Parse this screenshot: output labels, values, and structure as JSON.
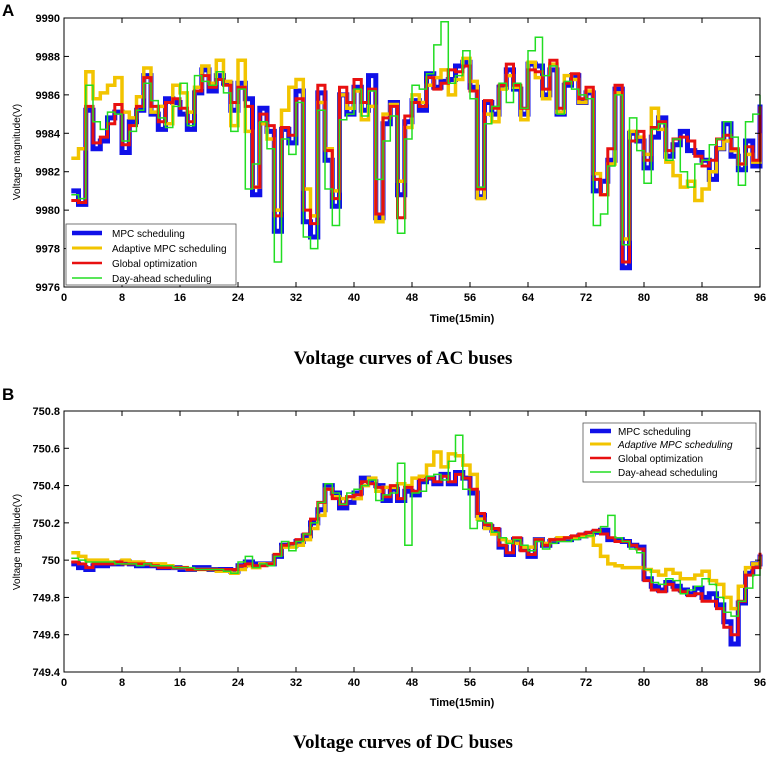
{
  "chart_data": [
    {
      "panel": "A",
      "type": "line",
      "step": true,
      "caption": "Voltage curves of AC buses",
      "xlabel": "Time(15min)",
      "ylabel": "Voltage magnitude(V)",
      "xlim": [
        0,
        96
      ],
      "ylim": [
        9976,
        9990
      ],
      "xticks": [
        0,
        8,
        16,
        24,
        32,
        40,
        48,
        56,
        64,
        72,
        80,
        88,
        96
      ],
      "yticks": [
        9976,
        9978,
        9980,
        9982,
        9984,
        9986,
        9988,
        9990
      ],
      "legend_position": "bottom-left",
      "series": [
        {
          "name": "MPC scheduling",
          "color": "#1010e8",
          "values": [
            9981,
            9980.3,
            9985.2,
            9983.2,
            9983.6,
            9984.8,
            9985.1,
            9983,
            9984.6,
            9985.2,
            9987,
            9985,
            9984.2,
            9985.8,
            9985.6,
            9985,
            9984.2,
            9986.1,
            9987.3,
            9986.2,
            9987,
            9986.6,
            9985.2,
            9986.6,
            9985.8,
            9980.8,
            9985.3,
            9984.1,
            9978.9,
            9984.2,
            9983.5,
            9986.2,
            9979.4,
            9978.6,
            9986.1,
            9982.6,
            9980.2,
            9986,
            9985,
            9986.4,
            9985.2,
            9987,
            9979.6,
            9984.5,
            9985.6,
            9980.8,
            9984.6,
            9985.7,
            9985.2,
            9987.1,
            9986.4,
            9986.7,
            9986.8,
            9987.5,
            9987.7,
            9986.4,
            9980.7,
            9985.6,
            9985,
            9986.4,
            9987.3,
            9986.3,
            9985,
            9987.6,
            9987.5,
            9986,
            9987.3,
            9985,
            9986.5,
            9987,
            9985.6,
            9986.1,
            9981,
            9981.5,
            9982.6,
            9986.3,
            9977,
            9984,
            9983.6,
            9982.2,
            9983.8,
            9984.8,
            9982.8,
            9983.4,
            9984.1,
            9983.1,
            9983,
            9982.6,
            9981.6,
            9983.2,
            9984.5,
            9982.8,
            9982.1,
            9983.6,
            9982.3,
            9985.5
          ]
        },
        {
          "name": "Adaptive MPC scheduling",
          "color": "#f2c400",
          "values": [
            9982.7,
            9983.2,
            9987.2,
            9985.8,
            9986.1,
            9986.5,
            9986.9,
            9985.1,
            9984.8,
            9985.9,
            9987.4,
            9985.1,
            9985.4,
            9984.5,
            9986.5,
            9986.1,
            9985.1,
            9986.4,
            9987.5,
            9986.6,
            9987.8,
            9986.7,
            9984.4,
            9987.8,
            9984.1,
            9981.2,
            9984.5,
            9983.7,
            9980,
            9985.2,
            9986.4,
            9986.8,
            9981.1,
            9979.7,
            9985.6,
            9983.2,
            9981,
            9986,
            9985.3,
            9986.2,
            9984.7,
            9985.4,
            9979.4,
            9985,
            9985.5,
            9981.5,
            9984.3,
            9986,
            9985.6,
            9986.5,
            9986.9,
            9987.3,
            9986,
            9986.8,
            9987.9,
            9986.7,
            9980.6,
            9985,
            9984.6,
            9986.3,
            9987,
            9986.4,
            9984.7,
            9987.7,
            9986.9,
            9985.8,
            9987.6,
            9985.1,
            9987,
            9986.8,
            9985.6,
            9986.2,
            9981.9,
            9980.8,
            9982.4,
            9986.1,
            9978.5,
            9984.1,
            9983.8,
            9982.9,
            9985.3,
            9984.2,
            9982.5,
            9981.8,
            9981.2,
            9981.5,
            9980.5,
            9981.1,
            9982,
            9983.2,
            9983.6,
            9983.1,
            9982.4,
            9982.9,
            9982.5,
            9984
          ]
        },
        {
          "name": "Global optimization",
          "color": "#e81010",
          "values": [
            9980.5,
            9980.4,
            9985.4,
            9983.5,
            9983.8,
            9984.5,
            9985.5,
            9983.4,
            9984.4,
            9985.4,
            9986.9,
            9985.4,
            9984.6,
            9985.6,
            9985.8,
            9985.3,
            9984.6,
            9986.2,
            9987,
            9986.4,
            9986.8,
            9986.5,
            9985.6,
            9986.4,
            9985.4,
            9981.2,
            9985,
            9984.4,
            9979.7,
            9984.3,
            9983.9,
            9985.8,
            9980,
            9979.3,
            9986.5,
            9983.1,
            9980.6,
            9986.4,
            9985.6,
            9986.8,
            9985.6,
            9986.3,
            9979.8,
            9984.8,
            9985.4,
            9979.6,
            9984.9,
            9985.6,
            9985.4,
            9986.9,
            9986.3,
            9986.6,
            9987.3,
            9987.2,
            9987.5,
            9986.2,
            9981.1,
            9985.7,
            9985.3,
            9986.5,
            9987.6,
            9986.5,
            9985.3,
            9987.3,
            9987.2,
            9986.3,
            9987.8,
            9985.3,
            9986.6,
            9987.1,
            9985.8,
            9986.4,
            9981.6,
            9980.8,
            9983.2,
            9986.5,
            9977.3,
            9983.6,
            9984.1,
            9982.6,
            9984.3,
            9984.6,
            9983.1,
            9983.7,
            9983.8,
            9983.6,
            9982.8,
            9982.3,
            9982.6,
            9983.7,
            9983.9,
            9983.2,
            9982.4,
            9983.3,
            9982.6,
            9985.4
          ]
        },
        {
          "name": "Day-ahead scheduling",
          "color": "#22dd22",
          "values": [
            9980.8,
            9980.6,
            9986.5,
            9984.6,
            9984.2,
            9985.1,
            9985,
            9983.6,
            9984.1,
            9985.2,
            9986.6,
            9985.7,
            9984.8,
            9984.3,
            9985.4,
            9986.6,
            9984.4,
            9987,
            9986.7,
            9986.5,
            9987.2,
            9986.1,
            9984.1,
            9986.3,
            9981.1,
            9982.4,
            9984.6,
            9983.2,
            9977.3,
            9983.7,
            9982.9,
            9985.6,
            9978.6,
            9978,
            9985.2,
            9981.1,
            9979.2,
            9984.7,
            9985,
            9986.3,
            9984.9,
            9986.2,
            9981.6,
            9983.6,
            9984.9,
            9978.8,
            9983.7,
            9986.5,
            9986.3,
            9987.1,
            9988.6,
            9989.8,
            9986.6,
            9987,
            9988.3,
            9985.8,
            9981.2,
            9984.5,
            9985.4,
            9986.6,
            9985.6,
            9986.6,
            9985.3,
            9988.3,
            9989,
            9987,
            9987.5,
            9985,
            9986.7,
            9986.3,
            9986,
            9985.8,
            9979.2,
            9979.8,
            9982.3,
            9986,
            9978.2,
            9984.8,
            9983.1,
            9981.4,
            9984.2,
            9984.5,
            9982.6,
            9983.7,
            9982,
            9981.2,
            9982.4,
            9982.6,
            9983.4,
            9983.7,
            9984.6,
            9983.8,
            9981.3,
            9984.6,
            9985,
            9986
          ]
        }
      ]
    },
    {
      "panel": "B",
      "type": "line",
      "step": true,
      "caption": "Voltage curves of DC buses",
      "xlabel": "Time(15min)",
      "ylabel": "Voltage magnitude(V)",
      "xlim": [
        0,
        96
      ],
      "ylim": [
        749.4,
        750.8
      ],
      "xticks": [
        0,
        8,
        16,
        24,
        32,
        40,
        48,
        56,
        64,
        72,
        80,
        88,
        96
      ],
      "yticks": [
        "749.4",
        "749.6",
        "749.8",
        "750",
        "750.2",
        "750.4",
        "750.6",
        "750.8"
      ],
      "legend_position": "top-right",
      "series": [
        {
          "name": "MPC scheduling",
          "color": "#1010e8",
          "values": [
            749.98,
            749.96,
            749.95,
            749.97,
            749.97,
            749.98,
            749.98,
            749.99,
            749.98,
            749.97,
            749.97,
            749.97,
            749.96,
            749.96,
            749.96,
            749.95,
            749.95,
            749.96,
            749.96,
            749.95,
            749.95,
            749.95,
            749.94,
            749.97,
            749.99,
            749.98,
            749.98,
            749.98,
            750.02,
            750.08,
            750.08,
            750.1,
            750.13,
            750.2,
            750.27,
            750.4,
            750.36,
            750.28,
            750.31,
            750.36,
            750.44,
            750.42,
            750.4,
            750.32,
            750.38,
            750.32,
            750.37,
            750.35,
            750.42,
            750.44,
            750.41,
            750.46,
            750.41,
            750.47,
            750.44,
            750.36,
            750.24,
            750.18,
            750.16,
            750.07,
            750.03,
            750.11,
            750.06,
            750.02,
            750.11,
            750.08,
            750.1,
            750.11,
            750.11,
            750.12,
            750.13,
            750.14,
            750.15,
            750.16,
            750.11,
            750.11,
            750.1,
            750.08,
            750.07,
            749.9,
            749.86,
            749.84,
            749.88,
            749.86,
            749.84,
            749.82,
            749.85,
            749.8,
            749.82,
            749.76,
            749.67,
            749.55,
            749.77,
            749.93,
            749.98,
            750.03
          ]
        },
        {
          "name": "Adaptive MPC scheduling",
          "color": "#f2c400",
          "values": [
            750.04,
            750.02,
            750,
            750,
            750,
            749.99,
            749.99,
            750,
            749.99,
            749.99,
            749.98,
            749.98,
            749.98,
            749.97,
            749.96,
            749.96,
            749.95,
            749.95,
            749.95,
            749.95,
            749.94,
            749.94,
            749.93,
            749.95,
            749.97,
            749.96,
            749.98,
            749.98,
            750.03,
            750.07,
            750.07,
            750.08,
            750.11,
            750.17,
            750.24,
            750.38,
            750.34,
            750.33,
            750.34,
            750.33,
            750.4,
            750.44,
            750.37,
            750.39,
            750.39,
            750.41,
            750.4,
            750.44,
            750.45,
            750.51,
            750.58,
            750.5,
            750.57,
            750.56,
            750.51,
            750.46,
            750.22,
            750.17,
            750.14,
            750.11,
            750.1,
            750.09,
            750.07,
            750.07,
            750.11,
            750.09,
            750.11,
            750.12,
            750.12,
            750.12,
            750.13,
            750.13,
            750.08,
            750.02,
            749.98,
            749.97,
            749.96,
            749.96,
            749.96,
            749.95,
            749.94,
            749.92,
            749.95,
            749.93,
            749.9,
            749.9,
            749.92,
            749.94,
            749.89,
            749.87,
            749.8,
            749.74,
            749.86,
            749.96,
            749.98,
            750.02
          ]
        },
        {
          "name": "Global optimization",
          "color": "#e81010",
          "values": [
            749.99,
            749.98,
            749.96,
            749.98,
            749.98,
            749.98,
            749.99,
            749.98,
            749.98,
            749.98,
            749.98,
            749.97,
            749.96,
            749.96,
            749.96,
            749.96,
            749.95,
            749.95,
            749.95,
            749.95,
            749.95,
            749.95,
            749.95,
            749.97,
            749.98,
            749.97,
            749.97,
            749.98,
            750.03,
            750.08,
            750.09,
            750.11,
            750.14,
            750.22,
            750.31,
            750.38,
            750.33,
            750.3,
            750.34,
            750.35,
            750.42,
            750.41,
            750.39,
            750.34,
            750.4,
            750.33,
            750.39,
            750.37,
            750.43,
            750.44,
            750.42,
            750.45,
            750.42,
            750.46,
            750.44,
            750.38,
            750.25,
            750.19,
            750.17,
            750.08,
            750.04,
            750.12,
            750.05,
            750.03,
            750.11,
            750.08,
            750.11,
            750.11,
            750.12,
            750.13,
            750.14,
            750.15,
            750.16,
            750.14,
            750.12,
            750.1,
            750.1,
            750.08,
            750.06,
            749.89,
            749.84,
            749.83,
            749.87,
            749.84,
            749.83,
            749.81,
            749.82,
            749.78,
            749.78,
            749.74,
            749.64,
            749.6,
            749.78,
            749.92,
            749.96,
            750.04
          ]
        },
        {
          "name": "Day-ahead scheduling",
          "color": "#22dd22",
          "values": [
            750.01,
            750,
            749.99,
            749.99,
            749.99,
            749.99,
            749.98,
            749.98,
            749.98,
            749.97,
            749.98,
            749.97,
            749.97,
            749.97,
            749.96,
            749.96,
            749.96,
            749.95,
            749.95,
            749.95,
            749.95,
            749.94,
            749.93,
            749.99,
            750.02,
            749.96,
            749.98,
            749.97,
            750.02,
            750.1,
            750.05,
            750.1,
            750.14,
            750.2,
            750.31,
            750.41,
            750.36,
            750.3,
            750.36,
            750.38,
            750.4,
            750.43,
            750.32,
            750.35,
            750.36,
            750.52,
            750.08,
            750.36,
            750.37,
            750.45,
            750.46,
            750.43,
            750.53,
            750.67,
            750.38,
            750.17,
            750.21,
            750.2,
            750.15,
            750.12,
            750.09,
            750.11,
            750.08,
            750.05,
            750.1,
            750.06,
            750.09,
            750.1,
            750.1,
            750.11,
            750.12,
            750.13,
            750.15,
            750.18,
            750.24,
            750.12,
            750.1,
            750.06,
            750.04,
            749.95,
            749.88,
            749.87,
            749.9,
            749.89,
            749.82,
            749.84,
            749.86,
            749.9,
            749.87,
            749.8,
            749.72,
            749.7,
            749.78,
            749.85,
            749.92,
            750.02
          ]
        }
      ]
    }
  ]
}
